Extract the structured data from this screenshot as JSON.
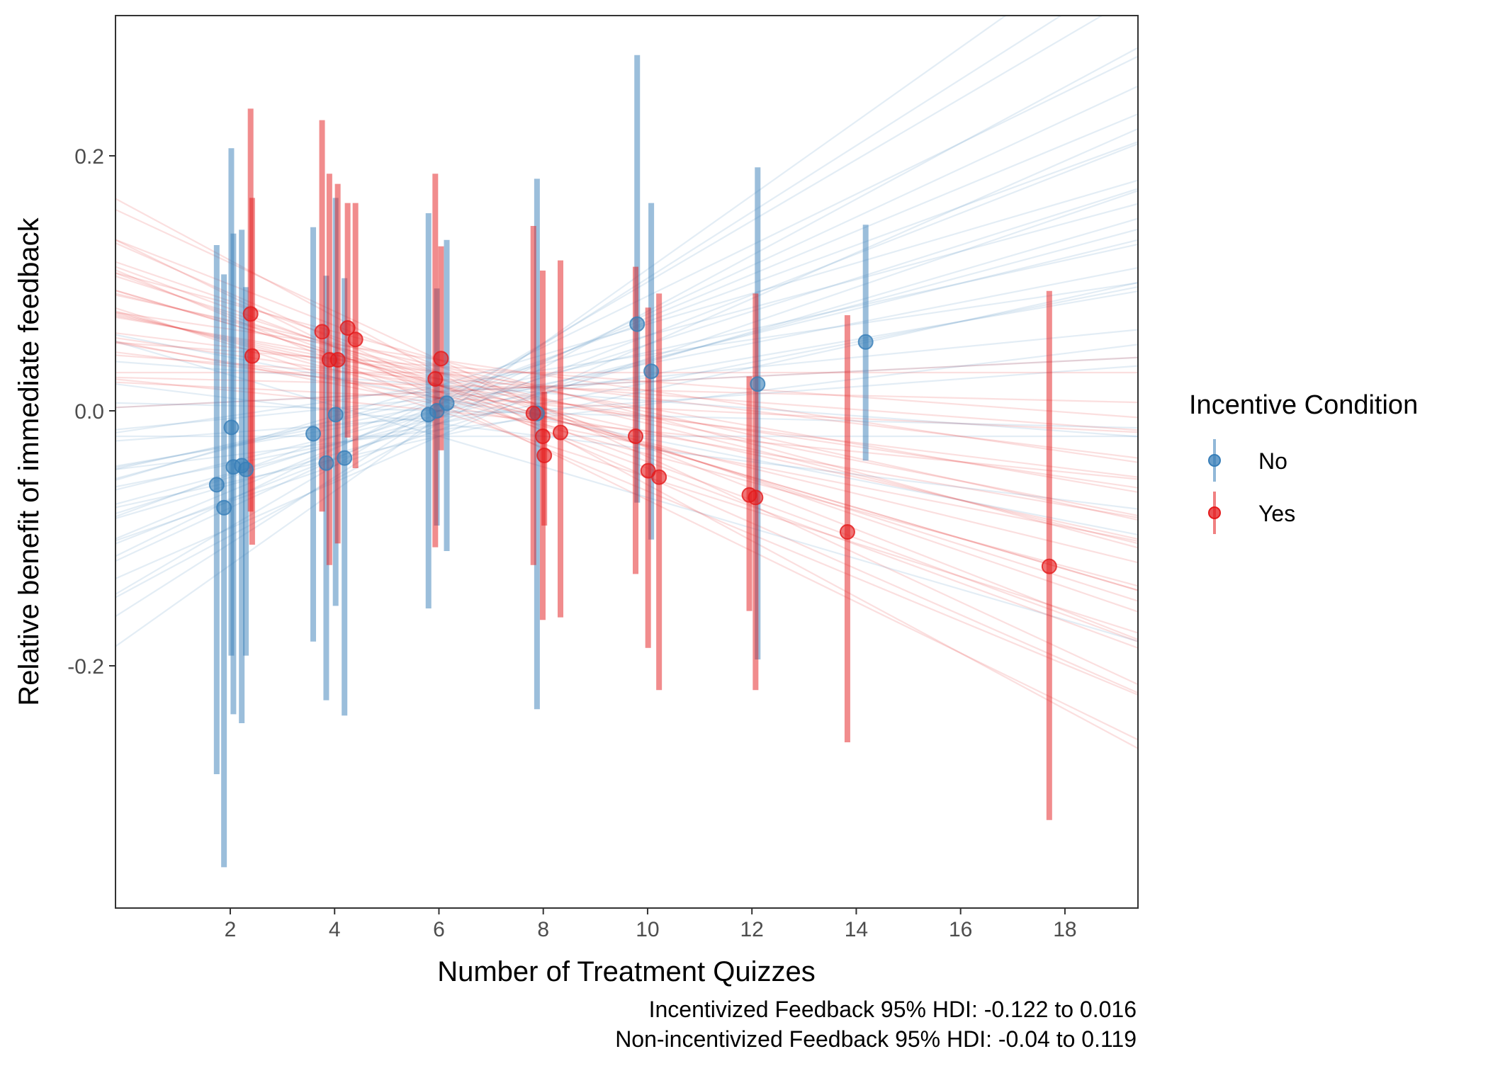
{
  "chart_data": {
    "type": "scatter",
    "xlabel": "Number of Treatment Quizzes",
    "ylabel": "Relative benefit of immediate feedback",
    "xlim": [
      -0.2,
      19.4
    ],
    "ylim": [
      -0.39,
      0.31
    ],
    "x_ticks": [
      2,
      4,
      6,
      8,
      10,
      12,
      14,
      16,
      18
    ],
    "x_tick_labels": [
      "2",
      "4",
      "6",
      "8",
      "10",
      "12",
      "14",
      "16",
      "18"
    ],
    "y_ticks": [
      -0.2,
      0.0,
      0.2
    ],
    "y_tick_labels": [
      "-0.2",
      "0.0",
      "0.2"
    ],
    "grid": false,
    "legend": {
      "title": "Incentive Condition",
      "position": "right",
      "items": [
        {
          "label": "No",
          "color": "#377EB8"
        },
        {
          "label": "Yes",
          "color": "#E41A1C"
        }
      ]
    },
    "caption": [
      "Incentivized Feedback 95% HDI: -0.122 to 0.016",
      "Non-incentivized Feedback 95% HDI: -0.04 to 0.119"
    ],
    "posterior_lines": {
      "No": {
        "color": "#377EB8",
        "center": {
          "x": 6.0,
          "y": 0.0
        },
        "slopes": [
          -0.012,
          -0.008,
          -0.005,
          -0.003,
          -0.001,
          0.0,
          0.002,
          0.003,
          0.004,
          0.005,
          0.006,
          0.007,
          0.008,
          0.008,
          0.009,
          0.009,
          0.01,
          0.011,
          0.011,
          0.012,
          0.012,
          0.013,
          0.014,
          0.015,
          0.016,
          0.017,
          0.018,
          0.019,
          0.02,
          0.022,
          0.024,
          0.026,
          0.029
        ],
        "intercept_offsets": [
          -0.02,
          0.01,
          -0.01,
          0.02,
          0.0,
          -0.02,
          0.015,
          -0.005,
          0.01,
          -0.015,
          0.02,
          0.0,
          -0.01,
          0.005,
          -0.02,
          0.01,
          0.0,
          -0.005,
          0.015,
          -0.01,
          0.02,
          0.0,
          -0.015,
          0.01,
          -0.005,
          0.005,
          -0.02,
          0.0,
          0.01,
          -0.01,
          0.005,
          0.0,
          -0.005
        ]
      },
      "Yes": {
        "color": "#E41A1C",
        "center": {
          "x": 6.0,
          "y": 0.02
        },
        "slopes": [
          -0.022,
          -0.02,
          -0.019,
          -0.018,
          -0.017,
          -0.016,
          -0.015,
          -0.014,
          -0.013,
          -0.013,
          -0.012,
          -0.011,
          -0.011,
          -0.01,
          -0.01,
          -0.009,
          -0.009,
          -0.008,
          -0.008,
          -0.007,
          -0.007,
          -0.006,
          -0.006,
          -0.005,
          -0.005,
          -0.004,
          -0.003,
          -0.003,
          -0.002,
          -0.001,
          0.0,
          0.002,
          -0.012,
          -0.015
        ],
        "intercept_offsets": [
          0.01,
          -0.01,
          0.02,
          0.0,
          -0.015,
          0.015,
          -0.005,
          0.01,
          -0.02,
          0.005,
          0.0,
          0.02,
          -0.01,
          0.01,
          -0.005,
          0.015,
          0.0,
          -0.015,
          0.005,
          0.01,
          -0.01,
          0.02,
          0.0,
          -0.005,
          0.01,
          -0.02,
          0.005,
          0.015,
          -0.01,
          0.0,
          0.01,
          -0.005,
          0.0,
          0.0
        ]
      }
    },
    "series": [
      {
        "name": "No",
        "color": "#377EB8",
        "points": [
          {
            "x": 1.74,
            "y": -0.058,
            "lo": -0.285,
            "hi": 0.13
          },
          {
            "x": 1.88,
            "y": -0.076,
            "lo": -0.358,
            "hi": 0.107
          },
          {
            "x": 2.02,
            "y": -0.013,
            "lo": -0.192,
            "hi": 0.206
          },
          {
            "x": 2.06,
            "y": -0.044,
            "lo": -0.238,
            "hi": 0.139
          },
          {
            "x": 2.22,
            "y": -0.043,
            "lo": -0.245,
            "hi": 0.142
          },
          {
            "x": 2.3,
            "y": -0.046,
            "lo": -0.192,
            "hi": 0.097
          },
          {
            "x": 3.59,
            "y": -0.018,
            "lo": -0.181,
            "hi": 0.144
          },
          {
            "x": 3.84,
            "y": -0.041,
            "lo": -0.227,
            "hi": 0.106
          },
          {
            "x": 4.02,
            "y": -0.003,
            "lo": -0.153,
            "hi": 0.167
          },
          {
            "x": 4.19,
            "y": -0.037,
            "lo": -0.239,
            "hi": 0.104
          },
          {
            "x": 5.8,
            "y": -0.003,
            "lo": -0.155,
            "hi": 0.155
          },
          {
            "x": 5.96,
            "y": 0.0,
            "lo": -0.09,
            "hi": 0.096
          },
          {
            "x": 6.15,
            "y": 0.006,
            "lo": -0.11,
            "hi": 0.134
          },
          {
            "x": 7.88,
            "y": -0.002,
            "lo": -0.234,
            "hi": 0.182
          },
          {
            "x": 9.8,
            "y": 0.068,
            "lo": -0.072,
            "hi": 0.279
          },
          {
            "x": 10.07,
            "y": 0.031,
            "lo": -0.101,
            "hi": 0.163
          },
          {
            "x": 12.11,
            "y": 0.021,
            "lo": -0.195,
            "hi": 0.191
          },
          {
            "x": 14.18,
            "y": 0.054,
            "lo": -0.039,
            "hi": 0.146
          }
        ]
      },
      {
        "name": "Yes",
        "color": "#E41A1C",
        "points": [
          {
            "x": 2.39,
            "y": 0.076,
            "lo": -0.079,
            "hi": 0.237
          },
          {
            "x": 2.42,
            "y": 0.043,
            "lo": -0.105,
            "hi": 0.167
          },
          {
            "x": 3.76,
            "y": 0.062,
            "lo": -0.079,
            "hi": 0.228
          },
          {
            "x": 3.9,
            "y": 0.04,
            "lo": -0.121,
            "hi": 0.186
          },
          {
            "x": 4.06,
            "y": 0.04,
            "lo": -0.104,
            "hi": 0.178
          },
          {
            "x": 4.25,
            "y": 0.065,
            "lo": -0.021,
            "hi": 0.163
          },
          {
            "x": 4.4,
            "y": 0.056,
            "lo": -0.045,
            "hi": 0.163
          },
          {
            "x": 5.93,
            "y": 0.025,
            "lo": -0.107,
            "hi": 0.186
          },
          {
            "x": 6.04,
            "y": 0.041,
            "lo": -0.031,
            "hi": 0.129
          },
          {
            "x": 7.81,
            "y": -0.002,
            "lo": -0.121,
            "hi": 0.145
          },
          {
            "x": 7.99,
            "y": -0.02,
            "lo": -0.164,
            "hi": 0.11
          },
          {
            "x": 8.02,
            "y": -0.035,
            "lo": -0.09,
            "hi": 0.015
          },
          {
            "x": 8.33,
            "y": -0.017,
            "lo": -0.162,
            "hi": 0.118
          },
          {
            "x": 9.77,
            "y": -0.02,
            "lo": -0.128,
            "hi": 0.113
          },
          {
            "x": 10.01,
            "y": -0.047,
            "lo": -0.186,
            "hi": 0.081
          },
          {
            "x": 10.22,
            "y": -0.052,
            "lo": -0.219,
            "hi": 0.092
          },
          {
            "x": 11.95,
            "y": -0.066,
            "lo": -0.157,
            "hi": 0.027
          },
          {
            "x": 12.07,
            "y": -0.068,
            "lo": -0.219,
            "hi": 0.092
          },
          {
            "x": 13.83,
            "y": -0.095,
            "lo": -0.26,
            "hi": 0.075
          },
          {
            "x": 17.7,
            "y": -0.122,
            "lo": -0.321,
            "hi": 0.094
          }
        ]
      }
    ]
  }
}
